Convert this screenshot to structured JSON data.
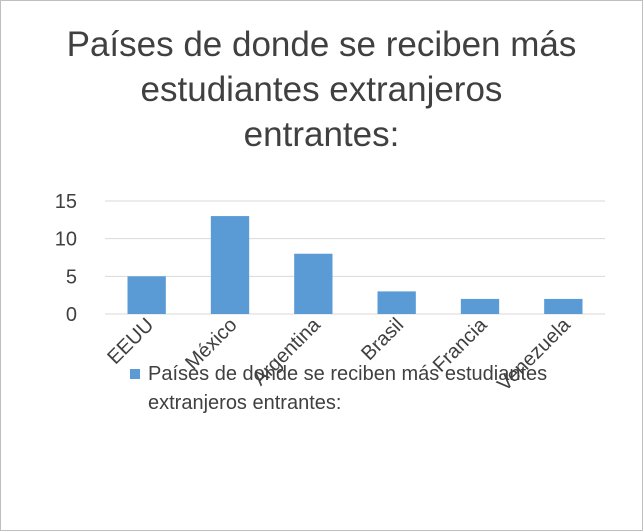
{
  "chart_data": {
    "type": "bar",
    "title": "Países de donde se reciben más estudiantes extranjeros entrantes:",
    "categories": [
      "EEUU",
      "México",
      "Argentina",
      "Brasil",
      "Francia",
      "Venezuela"
    ],
    "series": [
      {
        "name": "Países de donde se reciben más estudiantes extranjeros entrantes:",
        "color": "#5b9bd5",
        "values": [
          5,
          13,
          8,
          3,
          2,
          2
        ]
      }
    ],
    "ylim": [
      0,
      15
    ],
    "yticks": [
      0,
      5,
      10,
      15
    ],
    "grid": true,
    "legend": "bottom"
  }
}
